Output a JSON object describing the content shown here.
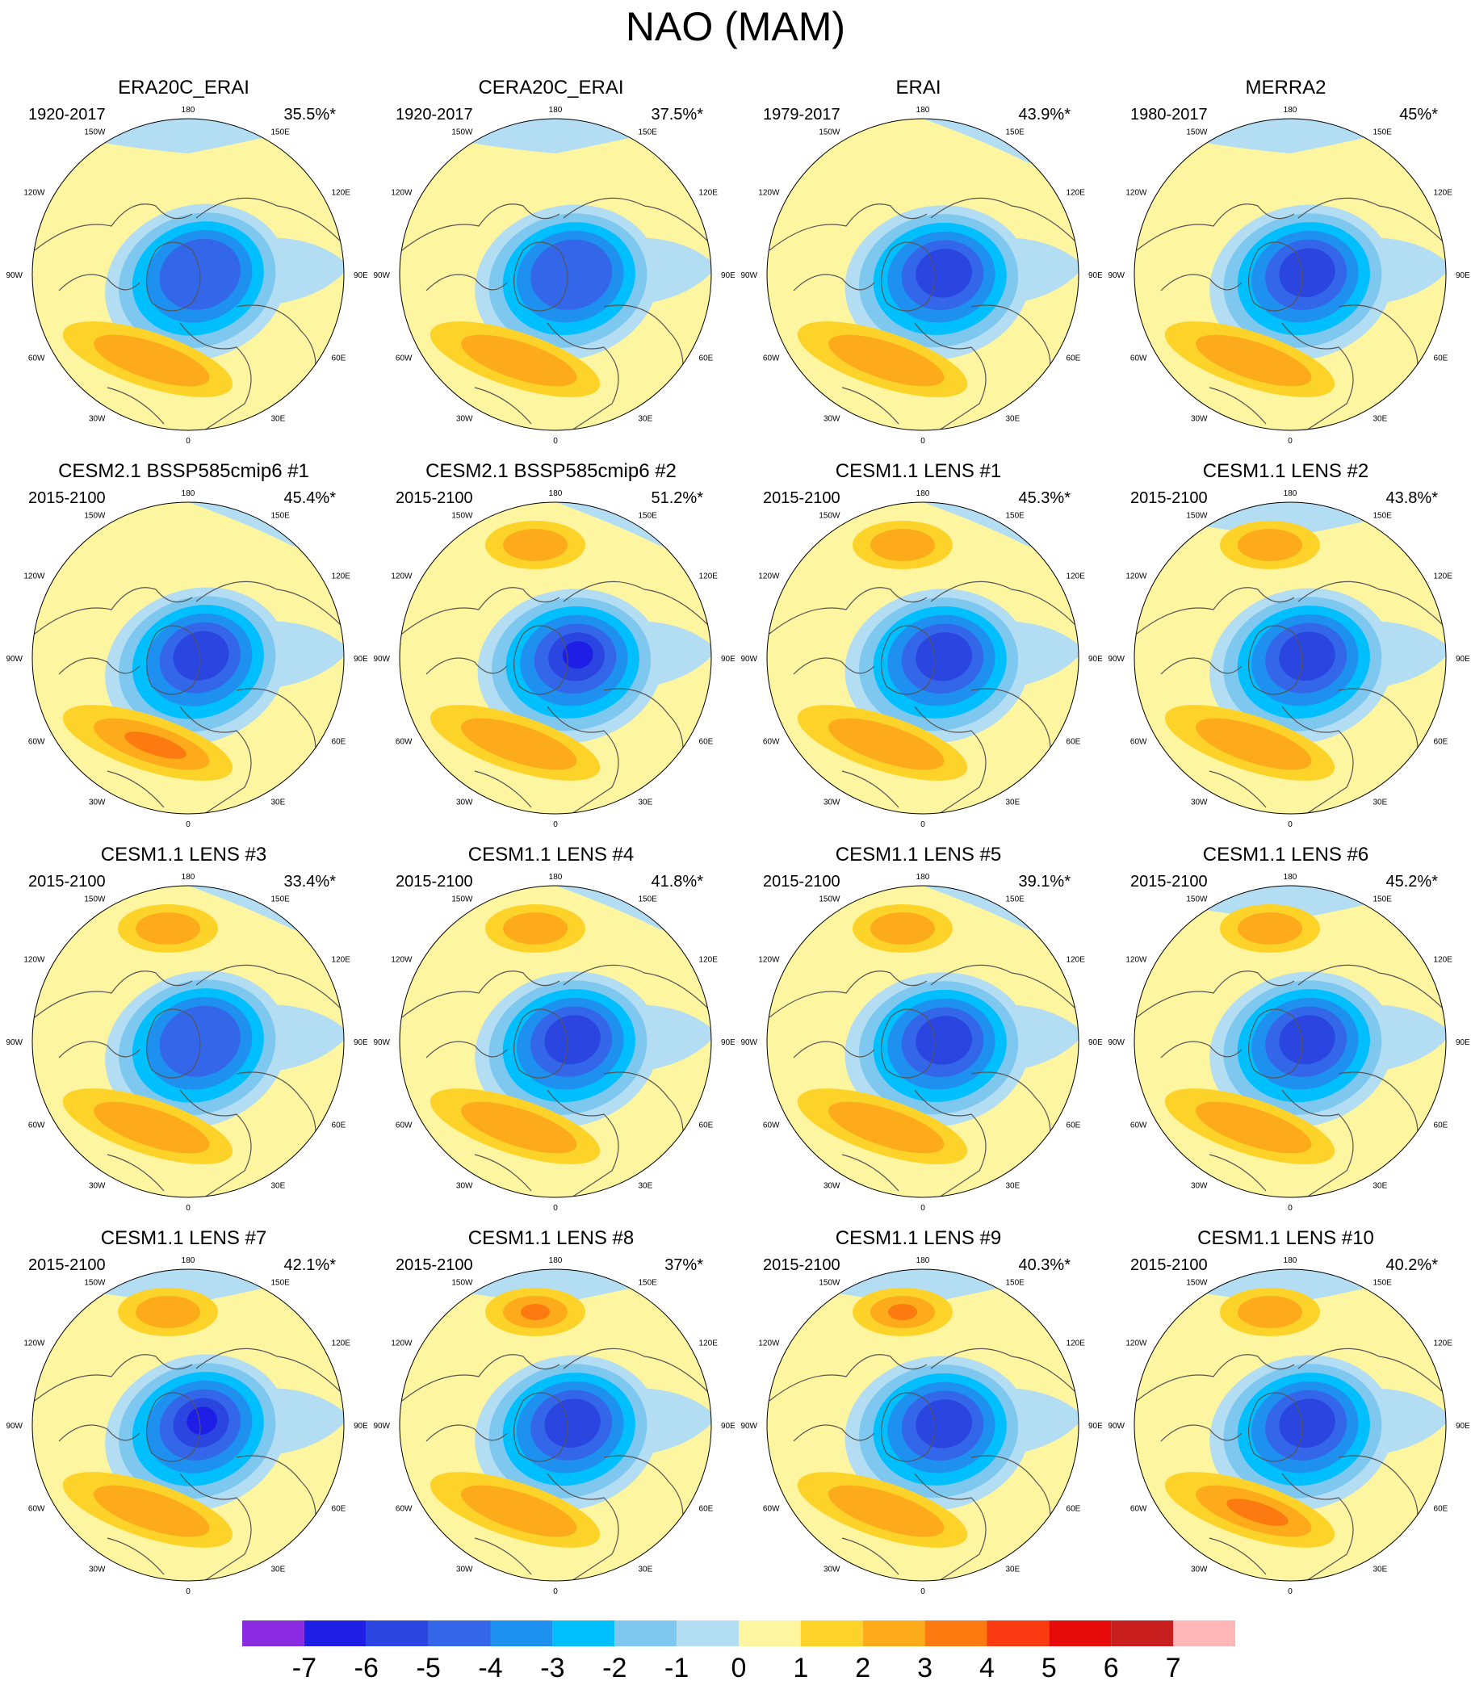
{
  "title": "NAO (MAM)",
  "chart_data": {
    "type": "heatmap",
    "projection": "polar stereographic, Northern Hemisphere",
    "lon_labels": [
      "180",
      "150W",
      "150E",
      "120W",
      "120E",
      "90W",
      "90E",
      "60W",
      "60E",
      "30W",
      "30E",
      "0"
    ],
    "panels": [
      {
        "title": "ERA20C_ERAI",
        "period": "1920-2017",
        "variance": "35.5%*",
        "center_min": -4,
        "pos_max": 2,
        "pacific": 1,
        "pac_max": 0,
        "tilt": 0
      },
      {
        "title": "CERA20C_ERAI",
        "period": "1920-2017",
        "variance": "37.5%*",
        "center_min": -4,
        "pos_max": 2,
        "pacific": 1,
        "pac_max": 0,
        "tilt": 5
      },
      {
        "title": "ERAI",
        "period": "1979-2017",
        "variance": "43.9%*",
        "center_min": -5,
        "pos_max": 2,
        "pacific": 0,
        "pac_max": 0,
        "tilt": 10
      },
      {
        "title": "MERRA2",
        "period": "1980-2017",
        "variance": "45%*",
        "center_min": -5,
        "pos_max": 2,
        "pacific": 1,
        "pac_max": 0,
        "tilt": 5
      },
      {
        "title": "CESM2.1 BSSP585cmip6 #1",
        "period": "2015-2100",
        "variance": "45.4%*",
        "center_min": -5,
        "pos_max": 3,
        "pacific": 0,
        "pac_max": 0,
        "tilt": 0
      },
      {
        "title": "CESM2.1 BSSP585cmip6 #2",
        "period": "2015-2100",
        "variance": "51.2%*",
        "center_min": -6,
        "pos_max": 2,
        "pacific": 0,
        "pac_max": 2,
        "tilt": 10
      },
      {
        "title": "CESM1.1 LENS #1",
        "period": "2015-2100",
        "variance": "45.3%*",
        "center_min": -5,
        "pos_max": 2,
        "pacific": 0,
        "pac_max": 2,
        "tilt": 10
      },
      {
        "title": "CESM1.1 LENS #2",
        "period": "2015-2100",
        "variance": "43.8%*",
        "center_min": -5,
        "pos_max": 2,
        "pacific": 1,
        "pac_max": 2,
        "tilt": 5
      },
      {
        "title": "CESM1.1 LENS #3",
        "period": "2015-2100",
        "variance": "33.4%*",
        "center_min": -4,
        "pos_max": 2,
        "pacific": 0,
        "pac_max": 2,
        "tilt": 0
      },
      {
        "title": "CESM1.1 LENS #4",
        "period": "2015-2100",
        "variance": "41.8%*",
        "center_min": -5,
        "pos_max": 2,
        "pacific": 0,
        "pac_max": 2,
        "tilt": 5
      },
      {
        "title": "CESM1.1 LENS #5",
        "period": "2015-2100",
        "variance": "39.1%*",
        "center_min": -5,
        "pos_max": 2,
        "pacific": 0,
        "pac_max": 2,
        "tilt": 10
      },
      {
        "title": "CESM1.1 LENS #6",
        "period": "2015-2100",
        "variance": "45.2%*",
        "center_min": -5,
        "pos_max": 2,
        "pacific": 1,
        "pac_max": 2,
        "tilt": 5
      },
      {
        "title": "CESM1.1 LENS #7",
        "period": "2015-2100",
        "variance": "42.1%*",
        "center_min": -6,
        "pos_max": 2,
        "pacific": 1,
        "pac_max": 2,
        "tilt": 0
      },
      {
        "title": "CESM1.1 LENS #8",
        "period": "2015-2100",
        "variance": "37%*",
        "center_min": -5,
        "pos_max": 2,
        "pacific": 1,
        "pac_max": 3,
        "tilt": 5
      },
      {
        "title": "CESM1.1 LENS #9",
        "period": "2015-2100",
        "variance": "40.3%*",
        "center_min": -5,
        "pos_max": 2,
        "pacific": 1,
        "pac_max": 3,
        "tilt": 10
      },
      {
        "title": "CESM1.1 LENS #10",
        "period": "2015-2100",
        "variance": "40.2%*",
        "center_min": -5,
        "pos_max": 3,
        "pacific": 1,
        "pac_max": 2,
        "tilt": 5
      }
    ],
    "colorbar": {
      "labels": [
        "-7",
        "-6",
        "-5",
        "-4",
        "-3",
        "-2",
        "-1",
        "0",
        "1",
        "2",
        "3",
        "4",
        "5",
        "6",
        "7"
      ],
      "colors": [
        "#8a2be2",
        "#1e1ee6",
        "#2b45e0",
        "#3366e8",
        "#1e90f0",
        "#00bfff",
        "#7ec8f0",
        "#b3ddf2",
        "#fdf5a0",
        "#fdd32a",
        "#fdab1a",
        "#fd7a10",
        "#fa3a10",
        "#e60a0a",
        "#c81e1e",
        "#ffb6b6"
      ]
    }
  }
}
